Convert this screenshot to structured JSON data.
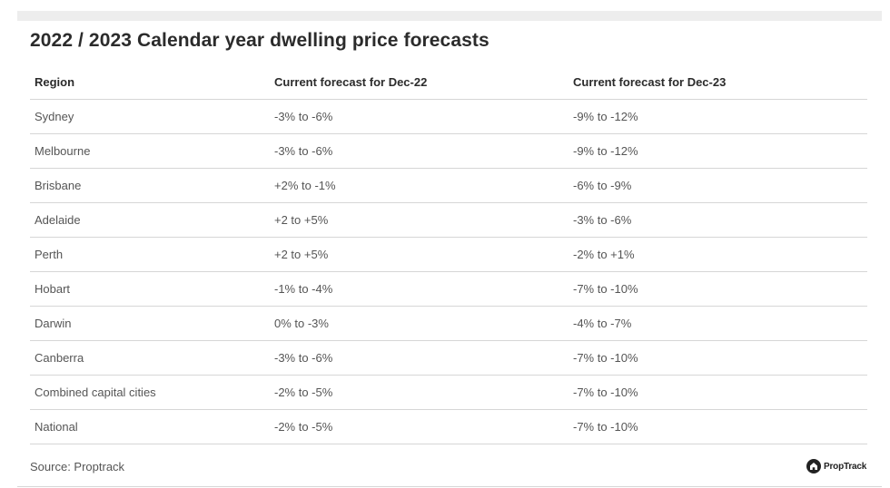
{
  "title": "2022 / 2023 Calendar year dwelling price forecasts",
  "table": {
    "headers": [
      "Region",
      "Current forecast for Dec-22",
      "Current forecast for Dec-23"
    ],
    "rows": [
      [
        "Sydney",
        "-3% to -6%",
        "-9% to -12%"
      ],
      [
        "Melbourne",
        "-3% to -6%",
        "-9% to -12%"
      ],
      [
        "Brisbane",
        "+2% to -1%",
        "-6% to -9%"
      ],
      [
        "Adelaide",
        "+2 to +5%",
        "-3% to -6%"
      ],
      [
        "Perth",
        "+2 to +5%",
        "-2% to +1%"
      ],
      [
        "Hobart",
        "-1% to -4%",
        "-7% to -10%"
      ],
      [
        "Darwin",
        "0% to -3%",
        "-4% to -7%"
      ],
      [
        "Canberra",
        "-3% to -6%",
        "-7% to -10%"
      ],
      [
        "Combined capital cities",
        "-2% to -5%",
        "-7% to -10%"
      ],
      [
        "National",
        "-2% to -5%",
        "-7% to -10%"
      ]
    ]
  },
  "source": "Source: Proptrack",
  "logo": {
    "text": "PropTrack",
    "icon": "proptrack-house-icon"
  }
}
